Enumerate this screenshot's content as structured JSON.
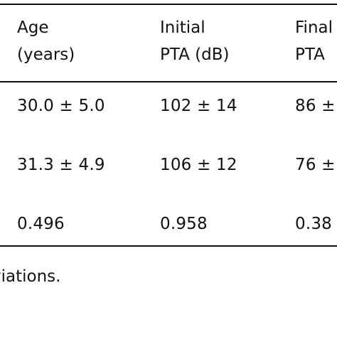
{
  "table": {
    "header": {
      "col_age_line1": "Age",
      "col_age_line2": "(years)",
      "col_initial_line1": "Initial",
      "col_initial_line2": "PTA (dB)",
      "col_final_line1": "Final",
      "col_final_line2": "PTA"
    },
    "rows": [
      {
        "age": "30.0 ± 5.0",
        "initial_pta": "102 ± 14",
        "final_pta": "86 ±"
      },
      {
        "age": "31.3 ± 4.9",
        "initial_pta": "106 ± 12",
        "final_pta": "76 ±"
      },
      {
        "age": "0.496",
        "initial_pta": "0.958",
        "final_pta": "0.38"
      }
    ]
  },
  "footnote": "viations."
}
